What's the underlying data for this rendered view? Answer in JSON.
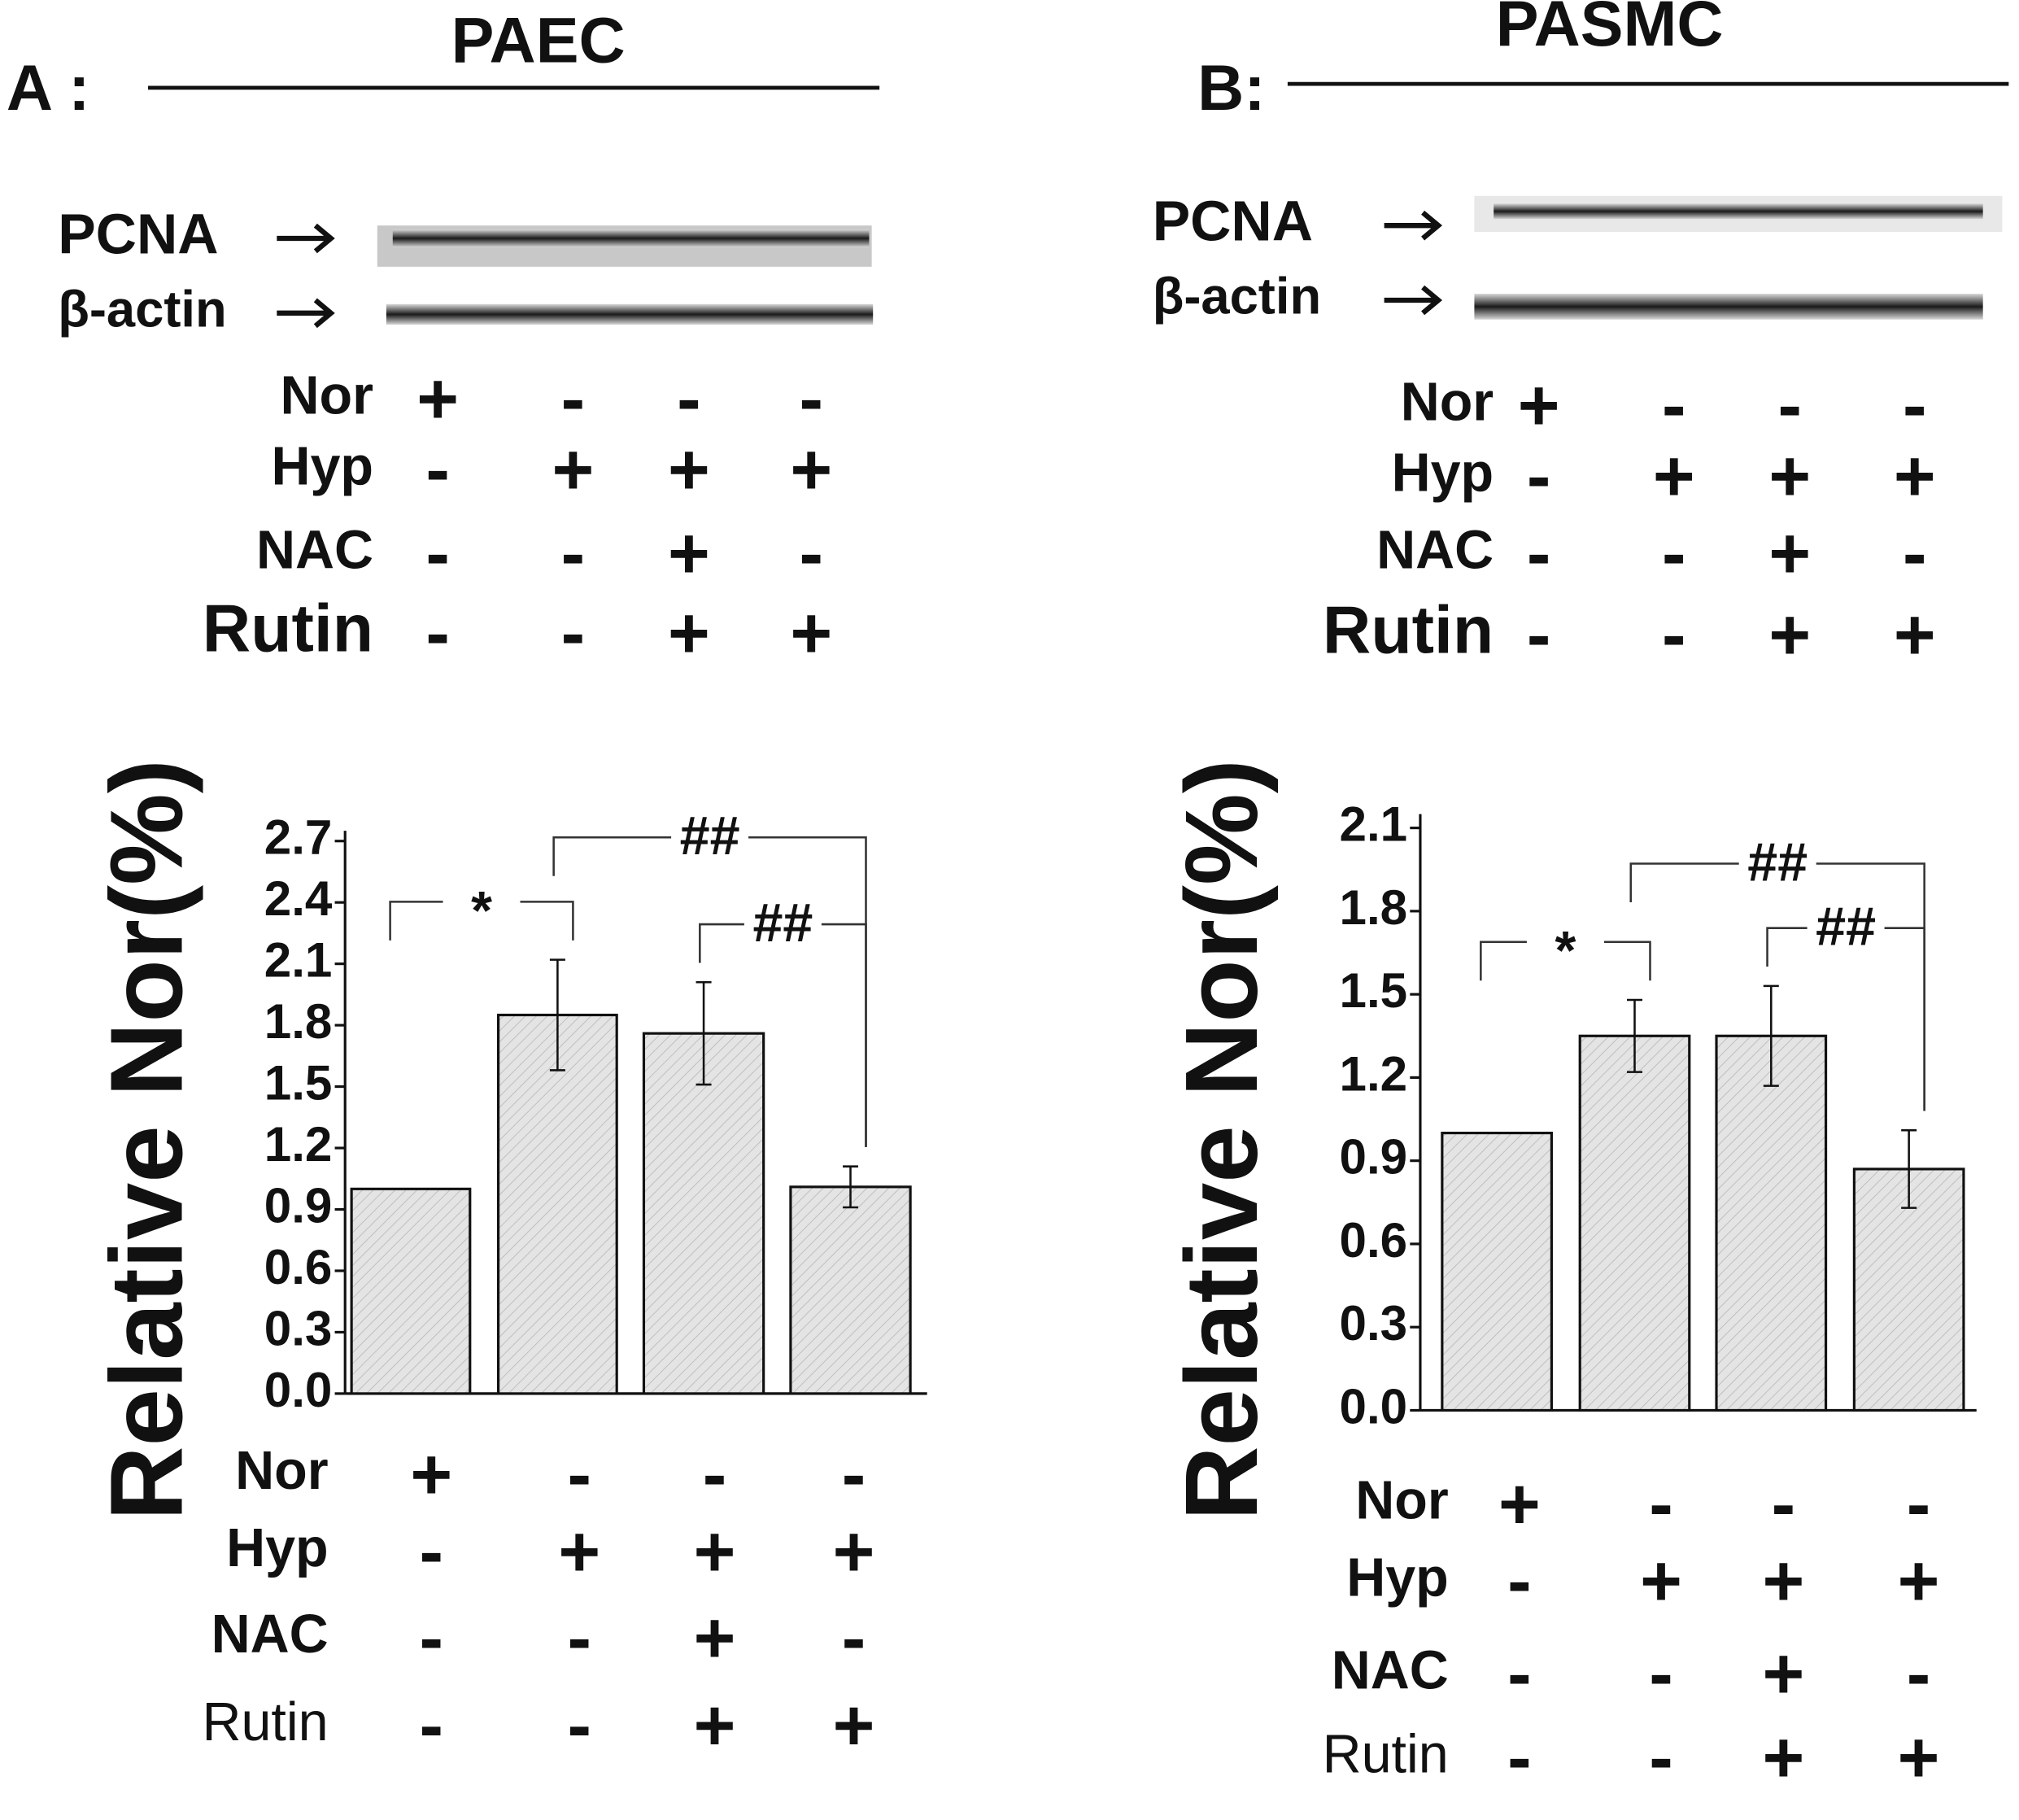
{
  "chart_data": [
    {
      "type": "bar",
      "panel_label": "A :",
      "title": "PAEC",
      "blot_labels": [
        "PCNA",
        "β-actin"
      ],
      "blot_conditions": [
        {
          "name": "Nor",
          "signs": [
            "+",
            "-",
            "-",
            "-"
          ]
        },
        {
          "name": "Hyp",
          "signs": [
            "-",
            "+",
            "+",
            "+"
          ]
        },
        {
          "name": "NAC",
          "signs": [
            "-",
            "-",
            "+",
            "-"
          ]
        },
        {
          "name": "Rutin",
          "signs": [
            "-",
            "-",
            "+",
            "+"
          ]
        }
      ],
      "ylabel": "Relative Nor(%)",
      "values": [
        1.0,
        1.85,
        1.76,
        1.01
      ],
      "errors": [
        null,
        0.27,
        0.25,
        0.1
      ],
      "color": "#e4e4e4",
      "ylim": [
        0,
        2.75
      ],
      "yticks": [
        {
          "value": 0,
          "label": "0.0"
        },
        {
          "value": 0.3,
          "label": "0.3"
        },
        {
          "value": 0.6,
          "label": "0.6"
        },
        {
          "value": 0.9,
          "label": "0.9"
        },
        {
          "value": 1.2,
          "label": "1.2"
        },
        {
          "value": 1.5,
          "label": "1.5"
        },
        {
          "value": 1.8,
          "label": "1.8"
        },
        {
          "value": 2.1,
          "label": "2.1"
        },
        {
          "value": 2.4,
          "label": "2.4"
        },
        {
          "value": 2.7,
          "label": "2.7"
        }
      ],
      "annotations": [
        {
          "text": "*",
          "from": 0,
          "to": 1
        },
        {
          "text": "##",
          "from": 1,
          "to": 3
        },
        {
          "text": "##",
          "from": 2,
          "to": 3
        }
      ],
      "conditions": [
        {
          "name": "Nor",
          "signs": [
            "+",
            "-",
            "-",
            "-"
          ]
        },
        {
          "name": "Hyp",
          "signs": [
            "-",
            "+",
            "+",
            "+"
          ]
        },
        {
          "name": "NAC",
          "signs": [
            "-",
            "-",
            "+",
            "-"
          ]
        },
        {
          "name": "Rutin",
          "signs": [
            "-",
            "-",
            "+",
            "+"
          ]
        }
      ]
    },
    {
      "type": "bar",
      "panel_label": "B:",
      "title": "PASMC",
      "blot_labels": [
        "PCNA",
        "β-actin"
      ],
      "blot_conditions": [
        {
          "name": "Nor",
          "signs": [
            "+",
            "-",
            "-",
            "-"
          ]
        },
        {
          "name": "Hyp",
          "signs": [
            "-",
            "+",
            "+",
            "+"
          ]
        },
        {
          "name": "NAC",
          "signs": [
            "-",
            "-",
            "+",
            "-"
          ]
        },
        {
          "name": "Rutin",
          "signs": [
            "-",
            "-",
            "+",
            "+"
          ]
        }
      ],
      "ylabel": "Relative Nor(%)",
      "values": [
        1.0,
        1.35,
        1.35,
        0.87
      ],
      "errors": [
        null,
        0.13,
        0.18,
        0.14
      ],
      "color": "#e4e4e4",
      "ylim": [
        0,
        2.15
      ],
      "yticks": [
        {
          "value": 0,
          "label": "0.0"
        },
        {
          "value": 0.3,
          "label": "0.3"
        },
        {
          "value": 0.6,
          "label": "0.6"
        },
        {
          "value": 0.9,
          "label": "0.9"
        },
        {
          "value": 1.2,
          "label": "1.2"
        },
        {
          "value": 1.5,
          "label": "1.5"
        },
        {
          "value": 1.8,
          "label": "1.8"
        },
        {
          "value": 2.1,
          "label": "2.1"
        }
      ],
      "annotations": [
        {
          "text": "*",
          "from": 0,
          "to": 1
        },
        {
          "text": "##",
          "from": 1,
          "to": 3
        },
        {
          "text": "##",
          "from": 2,
          "to": 3
        }
      ],
      "conditions": [
        {
          "name": "Nor",
          "signs": [
            "+",
            "-",
            "-",
            "-"
          ]
        },
        {
          "name": "Hyp",
          "signs": [
            "-",
            "+",
            "+",
            "+"
          ]
        },
        {
          "name": "NAC",
          "signs": [
            "-",
            "-",
            "+",
            "-"
          ]
        },
        {
          "name": "Rutin",
          "signs": [
            "-",
            "-",
            "+",
            "+"
          ]
        }
      ]
    }
  ]
}
